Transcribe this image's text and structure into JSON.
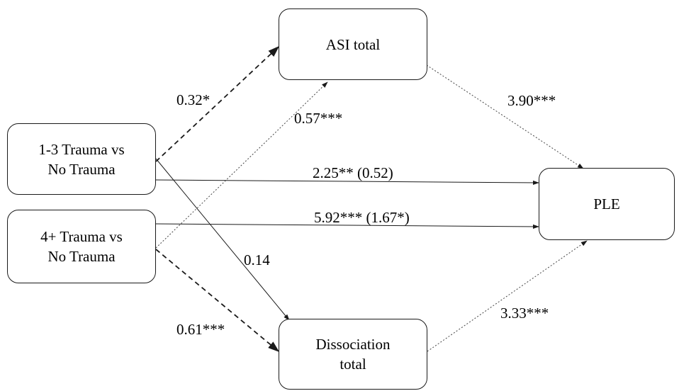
{
  "nodes": {
    "asi": "ASI total",
    "trauma13": "1-3 Trauma vs\nNo Trauma",
    "trauma4": "4+ Trauma vs\nNo Trauma",
    "ple": "PLE",
    "dissociation": "Dissociation\ntotal"
  },
  "edges": {
    "t13_asi": "0.32*",
    "t4_asi": "0.57***",
    "asi_ple": "3.90***",
    "t13_ple": "2.25** (0.52)",
    "t4_ple": "5.92*** (1.67*)",
    "t13_dis": "0.14",
    "t4_dis": "0.61***",
    "dis_ple": "3.33***"
  }
}
